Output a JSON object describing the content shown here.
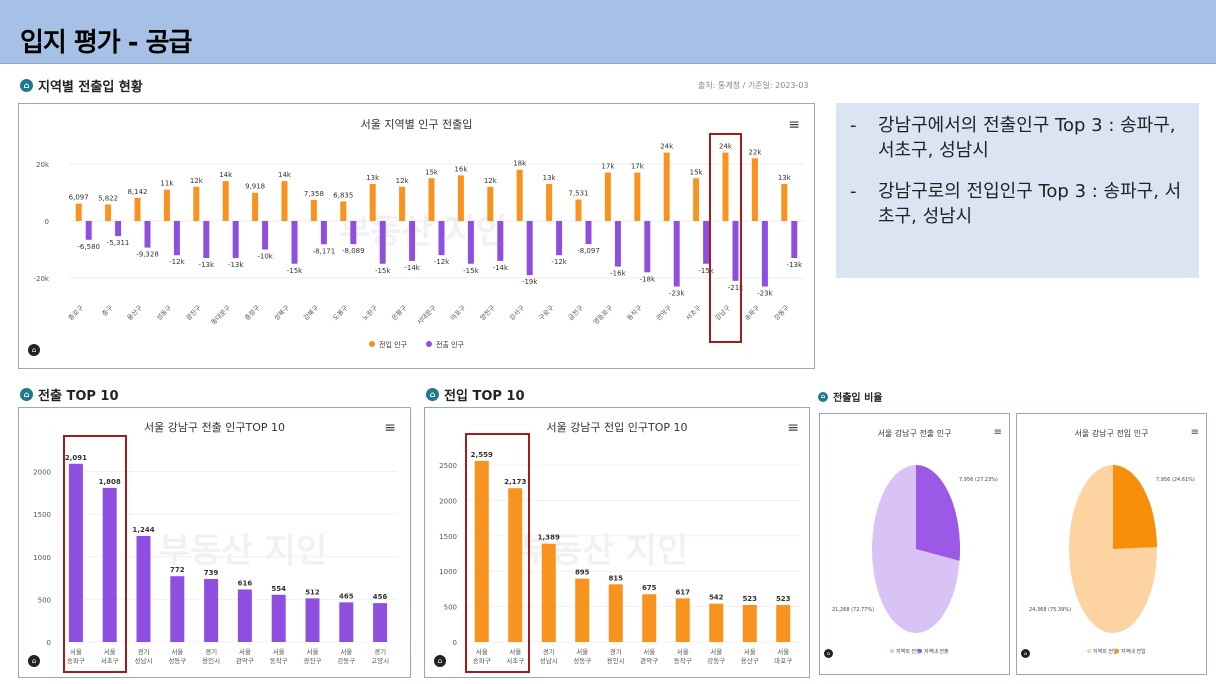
{
  "banner": {
    "title": "입지 평가 - 공급"
  },
  "sections": {
    "regional": "지역별 전출입 현황",
    "out_top10": "전출 TOP 10",
    "in_top10": "전입 TOP 10",
    "ratio": "전출입 비율"
  },
  "source": "출처: 통계청 / 기준일: 2023-03",
  "notes": [
    {
      "dash": "-",
      "text": "강남구에서의 전출인구 Top 3 : 송파구, 서초구, 성남시"
    },
    {
      "dash": "-",
      "text": "강남구로의 전입인구 Top 3 : 송파구, 서초구, 성남시"
    }
  ],
  "watermark": "부동산 지인",
  "colors": {
    "in": "#f7931e",
    "out": "#8e4fe0",
    "accent": "#a51c1c",
    "banner": "#a6c0e6"
  },
  "icons": {
    "section": "home-icon",
    "menu": "hamburger-menu-icon"
  },
  "chart_data": [
    {
      "type": "bar",
      "title": "서울 지역별 인구 전출입",
      "categories": [
        "종로구",
        "중구",
        "용산구",
        "성동구",
        "광진구",
        "동대문구",
        "중랑구",
        "성북구",
        "강북구",
        "도봉구",
        "노원구",
        "은평구",
        "서대문구",
        "마포구",
        "양천구",
        "강서구",
        "구로구",
        "금천구",
        "영등포구",
        "동작구",
        "관악구",
        "서초구",
        "강남구",
        "송파구",
        "강동구"
      ],
      "series": [
        {
          "name": "전입 인구",
          "values": [
            6097,
            5822,
            8142,
            11000,
            12000,
            14000,
            9918,
            14000,
            7358,
            6835,
            13000,
            12000,
            15000,
            16000,
            12000,
            18000,
            13000,
            7531,
            17000,
            17000,
            24000,
            15000,
            24000,
            22000,
            13000
          ],
          "labels": [
            "6,097",
            "5,822",
            "8,142",
            "11k",
            "12k",
            "14k",
            "9,918",
            "14k",
            "7,358",
            "6,835",
            "13k",
            "12k",
            "15k",
            "16k",
            "12k",
            "18k",
            "13k",
            "7,531",
            "17k",
            "17k",
            "24k",
            "15k",
            "24k",
            "22k",
            "13k"
          ]
        },
        {
          "name": "전출 인구",
          "values": [
            -6580,
            -5311,
            -9328,
            -12000,
            -13000,
            -13000,
            -10000,
            -15000,
            -8171,
            -8089,
            -15000,
            -14000,
            -12000,
            -15000,
            -14000,
            -19000,
            -12000,
            -8097,
            -16000,
            -18000,
            -23000,
            -15000,
            -21000,
            -23000,
            -13000
          ],
          "labels": [
            "-6,580",
            "-5,311",
            "-9,328",
            "-12k",
            "-13k",
            "-13k",
            "-10k",
            "-15k",
            "-8,171",
            "-8,089",
            "-15k",
            "-14k",
            "-12k",
            "-15k",
            "-14k",
            "-19k",
            "-12k",
            "-8,097",
            "-16k",
            "-18k",
            "-23k",
            "-15k",
            "-21k",
            "-23k",
            "-13k"
          ]
        }
      ],
      "yticks": [
        "20k",
        "0",
        "-20k"
      ],
      "ylim": [
        -25000,
        25000
      ],
      "legend": "bottom-center",
      "highlight": "강남구"
    },
    {
      "type": "bar",
      "title": "서울 강남구 전출 인구TOP 10",
      "categories": [
        [
          "서울",
          "송파구"
        ],
        [
          "서울",
          "서초구"
        ],
        [
          "경기",
          "성남시"
        ],
        [
          "서울",
          "성동구"
        ],
        [
          "경기",
          "용인시"
        ],
        [
          "서울",
          "관악구"
        ],
        [
          "서울",
          "동작구"
        ],
        [
          "서울",
          "광진구"
        ],
        [
          "서울",
          "강동구"
        ],
        [
          "경기",
          "고양시"
        ]
      ],
      "values": [
        2091,
        1808,
        1244,
        772,
        739,
        616,
        554,
        512,
        465,
        456
      ],
      "labels": [
        "2,091",
        "1,808",
        "1,244",
        "772",
        "739",
        "616",
        "554",
        "512",
        "465",
        "456"
      ],
      "yticks": [
        "2000",
        "1500",
        "1000",
        "500",
        "0"
      ],
      "ylim": [
        0,
        2100
      ]
    },
    {
      "type": "bar",
      "title": "서울 강남구 전입 인구TOP 10",
      "categories": [
        [
          "서울",
          "송파구"
        ],
        [
          "서울",
          "서초구"
        ],
        [
          "경기",
          "성남시"
        ],
        [
          "서울",
          "성동구"
        ],
        [
          "경기",
          "용인시"
        ],
        [
          "서울",
          "관악구"
        ],
        [
          "서울",
          "동작구"
        ],
        [
          "서울",
          "강동구"
        ],
        [
          "서울",
          "용산구"
        ],
        [
          "서울",
          "마포구"
        ]
      ],
      "values": [
        2559,
        2173,
        1389,
        895,
        815,
        675,
        617,
        542,
        523,
        523
      ],
      "labels": [
        "2,559",
        "2,173",
        "1,389",
        "895",
        "815",
        "675",
        "617",
        "542",
        "523",
        "523"
      ],
      "yticks": [
        "2500",
        "2000",
        "1500",
        "1000",
        "500",
        "0"
      ],
      "ylim": [
        0,
        2600
      ]
    },
    {
      "type": "pie",
      "title": "서울 강남구 전출 인구",
      "slices": [
        {
          "name": "지역외 전출",
          "value": 7956,
          "label": "7,956 (27.23%)"
        },
        {
          "name": "지역내 전출",
          "value": 21268,
          "label": "21,268 (72.77%)"
        }
      ],
      "legend": [
        "지역외 전출",
        "지역내 전출"
      ]
    },
    {
      "type": "pie",
      "title": "서울 강남구 전입 인구",
      "slices": [
        {
          "name": "지역외 전입",
          "value": 7956,
          "label": "7,956 (24.61%)"
        },
        {
          "name": "지역내 전입",
          "value": 24368,
          "label": "24,368 (75.39%)"
        }
      ],
      "legend": [
        "지역외 전입",
        "지역내 전입"
      ]
    }
  ]
}
